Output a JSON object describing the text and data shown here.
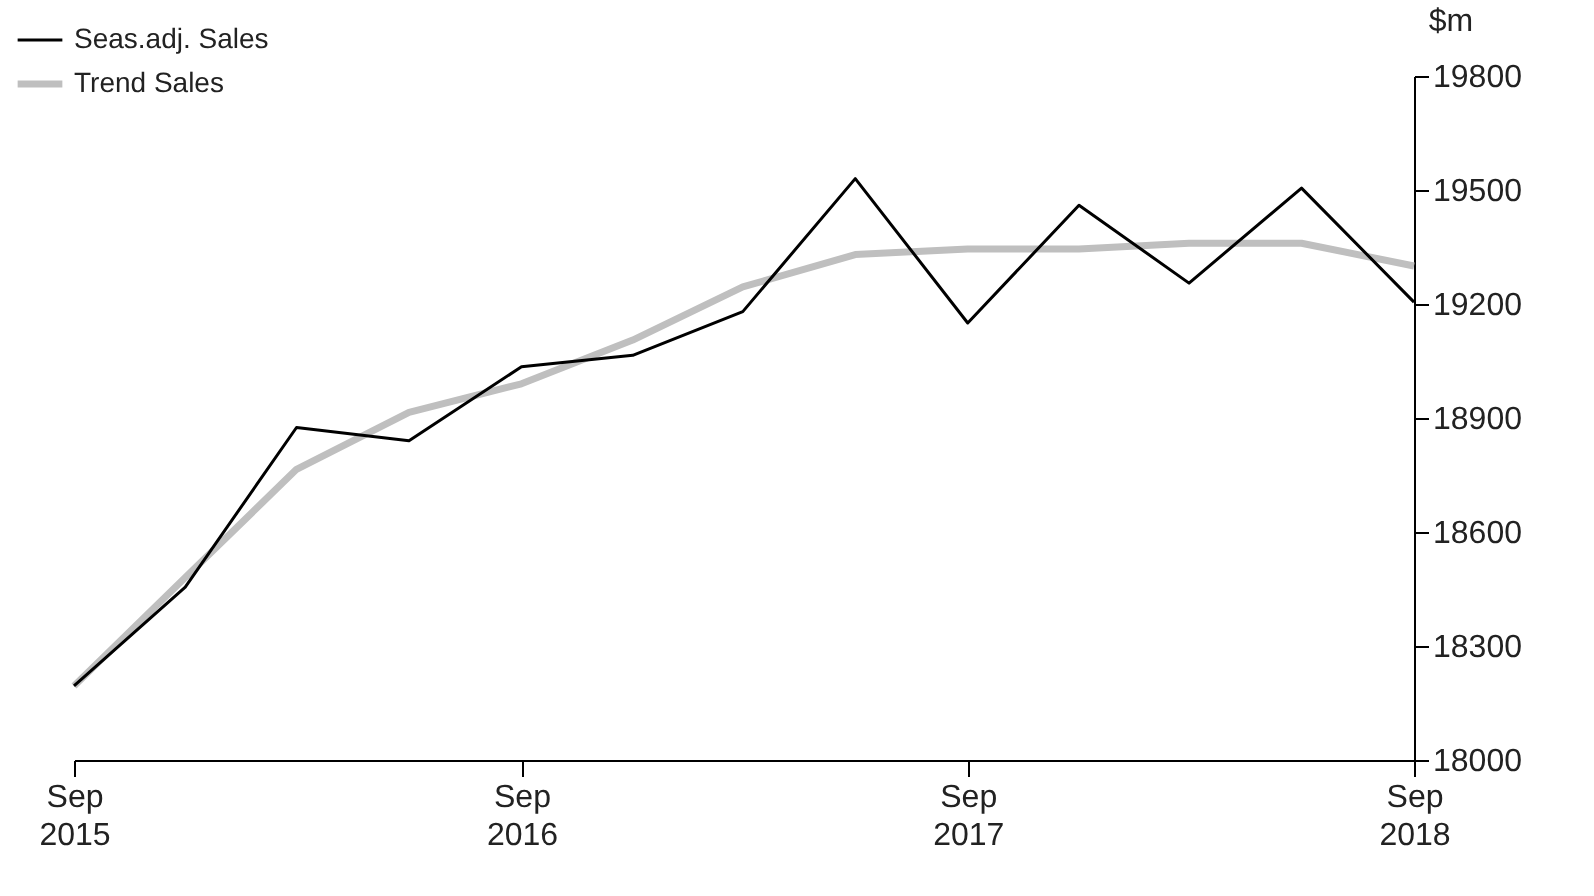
{
  "chart_data": {
    "type": "line",
    "ylabel": "$m",
    "legend": "top left",
    "x": [
      "2015-09",
      "2015-12",
      "2016-03",
      "2016-06",
      "2016-09",
      "2016-12",
      "2017-03",
      "2017-06",
      "2017-09",
      "2017-12",
      "2018-03",
      "2018-06",
      "2018-09"
    ],
    "xlim": [
      "2015-09",
      "2018-09"
    ],
    "xticks": [
      {
        "value": "2015-09",
        "label": "Sep 2015"
      },
      {
        "value": "2016-09",
        "label": "Sep 2016"
      },
      {
        "value": "2017-09",
        "label": "Sep 2017"
      },
      {
        "value": "2018-09",
        "label": "Sep 2018"
      }
    ],
    "ylim": [
      18000,
      19800
    ],
    "yticks": [
      18000,
      18300,
      18600,
      18900,
      19200,
      19500,
      19800
    ],
    "grid": false,
    "series": [
      {
        "name": "Seas.adj. Sales",
        "color": "#000000",
        "values": [
          18195,
          18455,
          18875,
          18840,
          19035,
          19065,
          19180,
          19530,
          19150,
          19460,
          19255,
          19505,
          19205
        ]
      },
      {
        "name": "Trend Sales",
        "color": "#bfbfbf",
        "values": [
          18195,
          18480,
          18765,
          18915,
          18990,
          19105,
          19245,
          19330,
          19345,
          19345,
          19360,
          19360,
          19300
        ]
      }
    ]
  }
}
